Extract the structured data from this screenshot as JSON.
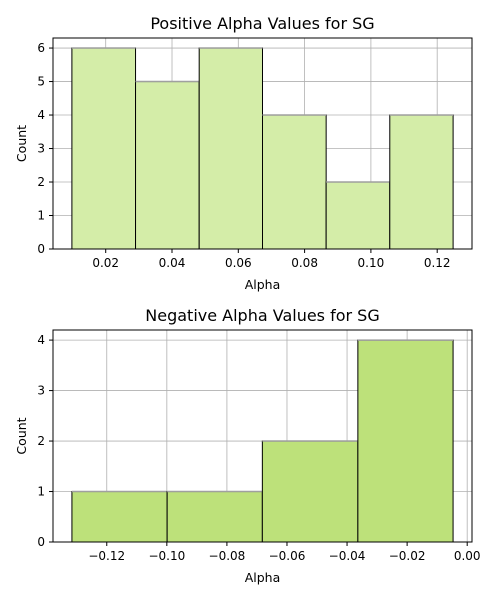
{
  "chart_data": [
    {
      "type": "bar",
      "title": "Positive Alpha Values for SG",
      "xlabel": "Alpha",
      "ylabel": "Count",
      "bin_edges": [
        0.0098,
        0.029,
        0.0482,
        0.0673,
        0.0865,
        0.1057,
        0.1248
      ],
      "values": [
        6,
        5,
        6,
        4,
        2,
        4
      ],
      "xlim": [
        0.0041,
        0.1305
      ],
      "ylim": [
        0,
        6.3
      ],
      "xticks": [
        0.02,
        0.04,
        0.06,
        0.08,
        0.1,
        0.12
      ],
      "xtick_labels": [
        "0.02",
        "0.04",
        "0.06",
        "0.08",
        "0.10",
        "0.12"
      ],
      "yticks": [
        0,
        1,
        2,
        3,
        4,
        5,
        6
      ],
      "ytick_labels": [
        "0",
        "1",
        "2",
        "3",
        "4",
        "5",
        "6"
      ],
      "grid": true,
      "bar_color": "#d4eda8",
      "edge_color": "#000000"
    },
    {
      "type": "bar",
      "title": "Negative Alpha Values for SG",
      "xlabel": "Alpha",
      "ylabel": "Count",
      "bin_edges": [
        -0.1316,
        -0.0999,
        -0.0682,
        -0.0364,
        -0.0047
      ],
      "values": [
        1,
        1,
        2,
        4
      ],
      "xlim": [
        -0.1379,
        0.0016
      ],
      "ylim": [
        0,
        4.2
      ],
      "xticks": [
        -0.12,
        -0.1,
        -0.08,
        -0.06,
        -0.04,
        -0.02,
        0.0
      ],
      "xtick_labels": [
        "−0.12",
        "−0.10",
        "−0.08",
        "−0.06",
        "−0.04",
        "−0.02",
        "0.00"
      ],
      "yticks": [
        0,
        1,
        2,
        3,
        4
      ],
      "ytick_labels": [
        "0",
        "1",
        "2",
        "3",
        "4"
      ],
      "grid": true,
      "bar_color": "#bde17a",
      "edge_color": "#000000"
    }
  ]
}
